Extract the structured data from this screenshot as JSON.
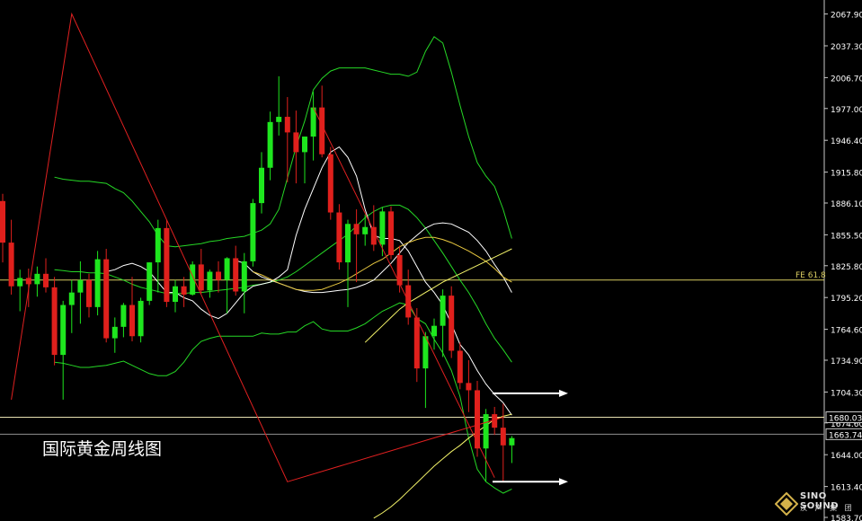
{
  "chart_data": {
    "type": "candlestick",
    "title": "国际黄金周线图",
    "ylim": [
      1583.7,
      2077.9
    ],
    "y_ticks": [
      "2067.90",
      "2037.30",
      "2006.70",
      "1977.00",
      "1946.40",
      "1915.80",
      "1886.10",
      "1855.50",
      "1825.80",
      "1795.20",
      "1764.60",
      "1734.90",
      "1704.30",
      "1674.60",
      "1644.00",
      "1613.40",
      "1583.70"
    ],
    "hlines": [
      {
        "value": 1812.0,
        "label": "FE 61.8",
        "tag": "",
        "color": "#d8cc60"
      },
      {
        "value": 1680.03,
        "label": "",
        "tag": "1680.03",
        "color": "#e8e0b0"
      },
      {
        "value": 1663.74,
        "label": "",
        "tag": "1663.74",
        "color": "#909090"
      }
    ],
    "candles": [
      [
        1888,
        1895,
        1829,
        1848
      ],
      [
        1848,
        1870,
        1798,
        1806
      ],
      [
        1806,
        1822,
        1782,
        1814
      ],
      [
        1814,
        1823,
        1786,
        1808
      ],
      [
        1808,
        1825,
        1796,
        1818
      ],
      [
        1818,
        1833,
        1800,
        1805
      ],
      [
        1805,
        1815,
        1730,
        1740
      ],
      [
        1740,
        1792,
        1697,
        1788
      ],
      [
        1788,
        1812,
        1761,
        1800
      ],
      [
        1800,
        1830,
        1770,
        1812
      ],
      [
        1812,
        1818,
        1776,
        1786
      ],
      [
        1786,
        1840,
        1778,
        1832
      ],
      [
        1832,
        1842,
        1752,
        1756
      ],
      [
        1756,
        1776,
        1742,
        1767
      ],
      [
        1767,
        1790,
        1757,
        1788
      ],
      [
        1788,
        1815,
        1753,
        1758
      ],
      [
        1758,
        1795,
        1752,
        1792
      ],
      [
        1792,
        1829,
        1788,
        1829
      ],
      [
        1829,
        1870,
        1800,
        1862
      ],
      [
        1862,
        1870,
        1786,
        1791
      ],
      [
        1791,
        1812,
        1781,
        1806
      ],
      [
        1806,
        1815,
        1786,
        1798
      ],
      [
        1798,
        1830,
        1797,
        1827
      ],
      [
        1827,
        1842,
        1799,
        1802
      ],
      [
        1802,
        1822,
        1795,
        1820
      ],
      [
        1820,
        1830,
        1800,
        1812
      ],
      [
        1812,
        1834,
        1780,
        1833
      ],
      [
        1833,
        1845,
        1797,
        1801
      ],
      [
        1801,
        1838,
        1780,
        1830
      ],
      [
        1830,
        1890,
        1825,
        1886
      ],
      [
        1886,
        1935,
        1876,
        1920
      ],
      [
        1920,
        1974,
        1908,
        1964
      ],
      [
        1964,
        2008,
        1951,
        1969
      ],
      [
        1969,
        1988,
        1906,
        1954
      ],
      [
        1954,
        1975,
        1905,
        1935
      ],
      [
        1935,
        1950,
        1905,
        1950
      ],
      [
        1950,
        1993,
        1927,
        1978
      ],
      [
        1978,
        1999,
        1930,
        1933
      ],
      [
        1933,
        1940,
        1870,
        1877
      ],
      [
        1877,
        1885,
        1822,
        1829
      ],
      [
        1829,
        1870,
        1786,
        1866
      ],
      [
        1866,
        1880,
        1810,
        1856
      ],
      [
        1856,
        1875,
        1845,
        1863
      ],
      [
        1863,
        1884,
        1840,
        1846
      ],
      [
        1846,
        1882,
        1835,
        1878
      ],
      [
        1878,
        1883,
        1832,
        1836
      ],
      [
        1836,
        1845,
        1800,
        1807
      ],
      [
        1807,
        1822,
        1769,
        1776
      ],
      [
        1776,
        1785,
        1714,
        1727
      ],
      [
        1727,
        1762,
        1689,
        1758
      ],
      [
        1758,
        1775,
        1745,
        1768
      ],
      [
        1768,
        1803,
        1738,
        1797
      ],
      [
        1797,
        1806,
        1737,
        1744
      ],
      [
        1744,
        1752,
        1707,
        1713
      ],
      [
        1713,
        1735,
        1685,
        1706
      ],
      [
        1706,
        1715,
        1642,
        1650
      ],
      [
        1650,
        1688,
        1618,
        1683
      ],
      [
        1683,
        1690,
        1663,
        1670
      ],
      [
        1670,
        1693,
        1618,
        1653
      ],
      [
        1653,
        1662,
        1636,
        1660
      ]
    ],
    "overlays": [
      {
        "name": "",
        "color": "#26d826",
        "values": [
          1911,
          1909,
          1908,
          1907,
          1907,
          1906,
          1905,
          1900,
          1896,
          1888,
          1878,
          1868,
          1855,
          1845,
          1844,
          1845,
          1846,
          1847,
          1849,
          1850,
          1852,
          1853,
          1854,
          1857,
          1860,
          1866,
          1880,
          1910,
          1940,
          1965,
          1995,
          2006,
          2013,
          2016,
          2016,
          2016,
          2016,
          2014,
          2012,
          2010,
          2010,
          2008,
          2012,
          2032,
          2046,
          2040,
          2012,
          1980,
          1950,
          1925,
          1912,
          1902,
          1880,
          1852
        ]
      },
      {
        "name": "",
        "color": "#26d826",
        "values": [
          1822,
          1821,
          1820,
          1820,
          1819,
          1819,
          1818,
          1815,
          1812,
          1808,
          1805,
          1803,
          1801,
          1799,
          1799,
          1799,
          1800,
          1800,
          1801,
          1802,
          1803,
          1804,
          1805,
          1807,
          1808,
          1810,
          1812,
          1815,
          1820,
          1826,
          1832,
          1838,
          1844,
          1850,
          1856,
          1864,
          1872,
          1878,
          1882,
          1884,
          1884,
          1880,
          1872,
          1862,
          1850,
          1838,
          1825,
          1812,
          1800,
          1786,
          1770,
          1756,
          1745,
          1733
        ]
      },
      {
        "name": "",
        "color": "#26d826",
        "values": [
          1733,
          1732,
          1730,
          1728,
          1728,
          1729,
          1730,
          1732,
          1734,
          1730,
          1726,
          1722,
          1720,
          1720,
          1724,
          1733,
          1745,
          1753,
          1756,
          1758,
          1758,
          1758,
          1758,
          1758,
          1761,
          1760,
          1760,
          1762,
          1762,
          1768,
          1772,
          1765,
          1763,
          1763,
          1763,
          1766,
          1770,
          1776,
          1782,
          1786,
          1790,
          1788,
          1775,
          1770,
          1755,
          1742,
          1725,
          1700,
          1660,
          1630,
          1618,
          1612,
          1607,
          1611
        ]
      },
      {
        "name": "",
        "color": "#ffffff",
        "values": [
          1820,
          1822,
          1826,
          1828,
          1825,
          1820,
          1810,
          1800,
          1800,
          1795,
          1792,
          1784,
          1778,
          1775,
          1780,
          1790,
          1800,
          1806,
          1808,
          1810,
          1815,
          1822,
          1855,
          1880,
          1900,
          1920,
          1935,
          1940,
          1930,
          1912,
          1880,
          1855,
          1852,
          1852,
          1850,
          1840,
          1825,
          1810,
          1800,
          1788,
          1770,
          1750,
          1740,
          1725,
          1712,
          1702,
          1694,
          1682
        ]
      },
      {
        "name": "",
        "color": "#ffffff",
        "values": [
          1831,
          1828,
          1820,
          1815,
          1812,
          1809,
          1806,
          1803,
          1801,
          1800,
          1800,
          1801,
          1802,
          1803,
          1805,
          1808,
          1812,
          1820,
          1828,
          1838,
          1848,
          1855,
          1862,
          1866,
          1867,
          1866,
          1862,
          1858,
          1850,
          1840,
          1827,
          1815,
          1800
        ]
      },
      {
        "name": "",
        "color": "#e8c840",
        "values": [
          1820,
          1817,
          1813,
          1809,
          1806,
          1803,
          1802,
          1802,
          1803,
          1806,
          1809,
          1813,
          1818,
          1823,
          1828,
          1832,
          1838,
          1844,
          1848,
          1851,
          1853,
          1853,
          1851,
          1848,
          1844,
          1840,
          1835,
          1830,
          1823,
          1815,
          1810
        ]
      },
      {
        "name": "",
        "color": "#f5f56a",
        "values": [
          1752,
          1760,
          1768,
          1776,
          1784,
          1790,
          1795,
          1800,
          1805,
          1810,
          1814,
          1818,
          1822,
          1826,
          1830,
          1834,
          1838,
          1842
        ]
      },
      {
        "name": "",
        "color": "#f5f56a",
        "values": [
          1583,
          1588,
          1594,
          1601,
          1609,
          1617,
          1625,
          1633,
          1640,
          1647,
          1653,
          1660,
          1666,
          1672,
          1678,
          1681,
          1683
        ]
      }
    ],
    "zigzag": [
      [
        1888,
        1697
      ],
      [
        1820,
        2068
      ],
      [
        1964,
        1618
      ],
      [
        1700,
        1680
      ]
    ],
    "arrows": [
      [
        1703,
        1707
      ],
      [
        1618,
        1622
      ]
    ]
  },
  "watermark": {
    "word": "SINO SOUND",
    "sub": "汉 声 集 团"
  }
}
